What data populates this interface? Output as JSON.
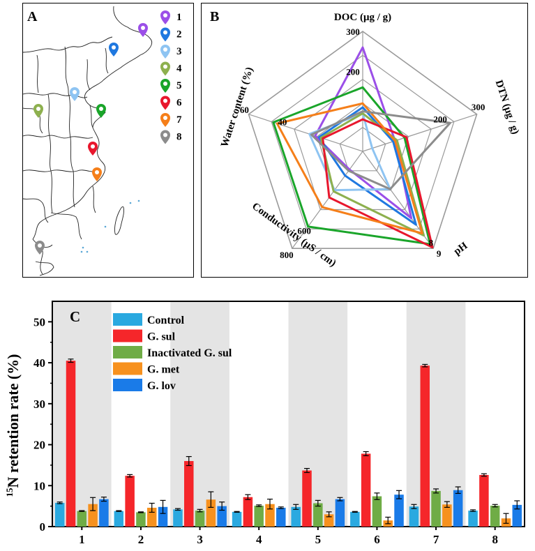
{
  "panel_a": {
    "label": "A",
    "legend": [
      {
        "id": "1",
        "color": "#9b4fe8"
      },
      {
        "id": "2",
        "color": "#1f78e0"
      },
      {
        "id": "3",
        "color": "#8ec4f2"
      },
      {
        "id": "4",
        "color": "#8db04e"
      },
      {
        "id": "5",
        "color": "#1aa52a"
      },
      {
        "id": "6",
        "color": "#e8172d"
      },
      {
        "id": "7",
        "color": "#f57f1a"
      },
      {
        "id": "8",
        "color": "#8c8c8c"
      }
    ],
    "marker_icon": "map-pin-icon"
  },
  "panel_b": {
    "label": "B",
    "axes": [
      {
        "name": "DOC (μg / g)",
        "ticks": [
          "200",
          "300"
        ]
      },
      {
        "name": "DTN (μg / g)",
        "ticks": [
          "200",
          "300"
        ]
      },
      {
        "name": "pH",
        "ticks": [
          "8",
          "9"
        ]
      },
      {
        "name": "Conductivity (μS / cm)",
        "ticks": [
          "600",
          "800"
        ]
      },
      {
        "name": "Water content (%)",
        "ticks": [
          "40",
          "60"
        ]
      }
    ]
  },
  "chart_data": [
    {
      "type": "radar",
      "panel": "B",
      "axes": [
        "DOC (μg / g)",
        "DTN (μg / g)",
        "pH",
        "Conductivity (μS / cm)",
        "Water content (%)"
      ],
      "ranges": [
        [
          0,
          300
        ],
        [
          0,
          300
        ],
        [
          0,
          9
        ],
        [
          0,
          800
        ],
        [
          0,
          60
        ]
      ],
      "series": [
        {
          "id": "1",
          "color": "#9b4fe8",
          "values": [
            260,
            85,
            6.2,
            150,
            25
          ]
        },
        {
          "id": "2",
          "color": "#1f78e0",
          "values": [
            110,
            80,
            6.8,
            200,
            23
          ]
        },
        {
          "id": "3",
          "color": "#8ec4f2",
          "values": [
            95,
            25,
            3.5,
            320,
            28
          ]
        },
        {
          "id": "4",
          "color": "#8db04e",
          "values": [
            95,
            90,
            7.8,
            330,
            22
          ]
        },
        {
          "id": "5",
          "color": "#1aa52a",
          "values": [
            160,
            110,
            8.6,
            620,
            47
          ]
        },
        {
          "id": "6",
          "color": "#e8172d",
          "values": [
            80,
            115,
            8.9,
            380,
            21
          ]
        },
        {
          "id": "7",
          "color": "#f57f1a",
          "values": [
            120,
            85,
            7.6,
            460,
            45
          ]
        },
        {
          "id": "8",
          "color": "#8c8c8c",
          "values": [
            100,
            230,
            3.5,
            160,
            27
          ]
        }
      ]
    },
    {
      "type": "bar",
      "panel": "C",
      "label": "C",
      "ylabel": "15N retention rate (%)",
      "ylabel_sup": "15",
      "ylabel_rest": "N retention rate (%)",
      "ylim": [
        0,
        55
      ],
      "yticks": [
        "0",
        "10",
        "20",
        "30",
        "40",
        "50"
      ],
      "categories": [
        "1",
        "2",
        "3",
        "4",
        "5",
        "6",
        "7",
        "8"
      ],
      "series": [
        {
          "name": "Control",
          "color": "#2aa9e0",
          "values": [
            5.8,
            3.8,
            4.2,
            3.6,
            4.8,
            3.6,
            4.9,
            3.9
          ],
          "errors": [
            0.2,
            0.1,
            0.2,
            0.1,
            0.6,
            0.1,
            0.5,
            0.2
          ]
        },
        {
          "name": "G. sul",
          "color": "#f5262a",
          "values": [
            40.5,
            12.4,
            16.0,
            7.2,
            13.7,
            17.8,
            39.3,
            12.6
          ],
          "errors": [
            0.4,
            0.3,
            1.1,
            0.6,
            0.5,
            0.5,
            0.3,
            0.3
          ]
        },
        {
          "name": "Inactivated G. sul",
          "color": "#6fac46",
          "values": [
            3.8,
            3.5,
            3.9,
            5.1,
            5.7,
            7.4,
            8.7,
            5.1
          ],
          "errors": [
            0.1,
            0.1,
            0.3,
            0.2,
            0.7,
            0.8,
            0.5,
            0.3
          ]
        },
        {
          "name": "G. met",
          "color": "#f7911e",
          "values": [
            5.5,
            4.6,
            6.6,
            5.5,
            3.0,
            1.5,
            5.4,
            2.0
          ],
          "errors": [
            1.6,
            1.1,
            1.9,
            1.2,
            0.6,
            0.8,
            0.7,
            1.2
          ]
        },
        {
          "name": "G. lov",
          "color": "#1a7be8",
          "values": [
            6.7,
            4.8,
            5.0,
            4.6,
            6.7,
            7.8,
            8.9,
            5.3
          ],
          "errors": [
            0.5,
            1.6,
            1.0,
            0.2,
            0.4,
            1.0,
            0.8,
            1.0
          ]
        }
      ],
      "shaded_categories": [
        "1",
        "3",
        "5",
        "7"
      ],
      "legend_position": "top-left"
    }
  ]
}
